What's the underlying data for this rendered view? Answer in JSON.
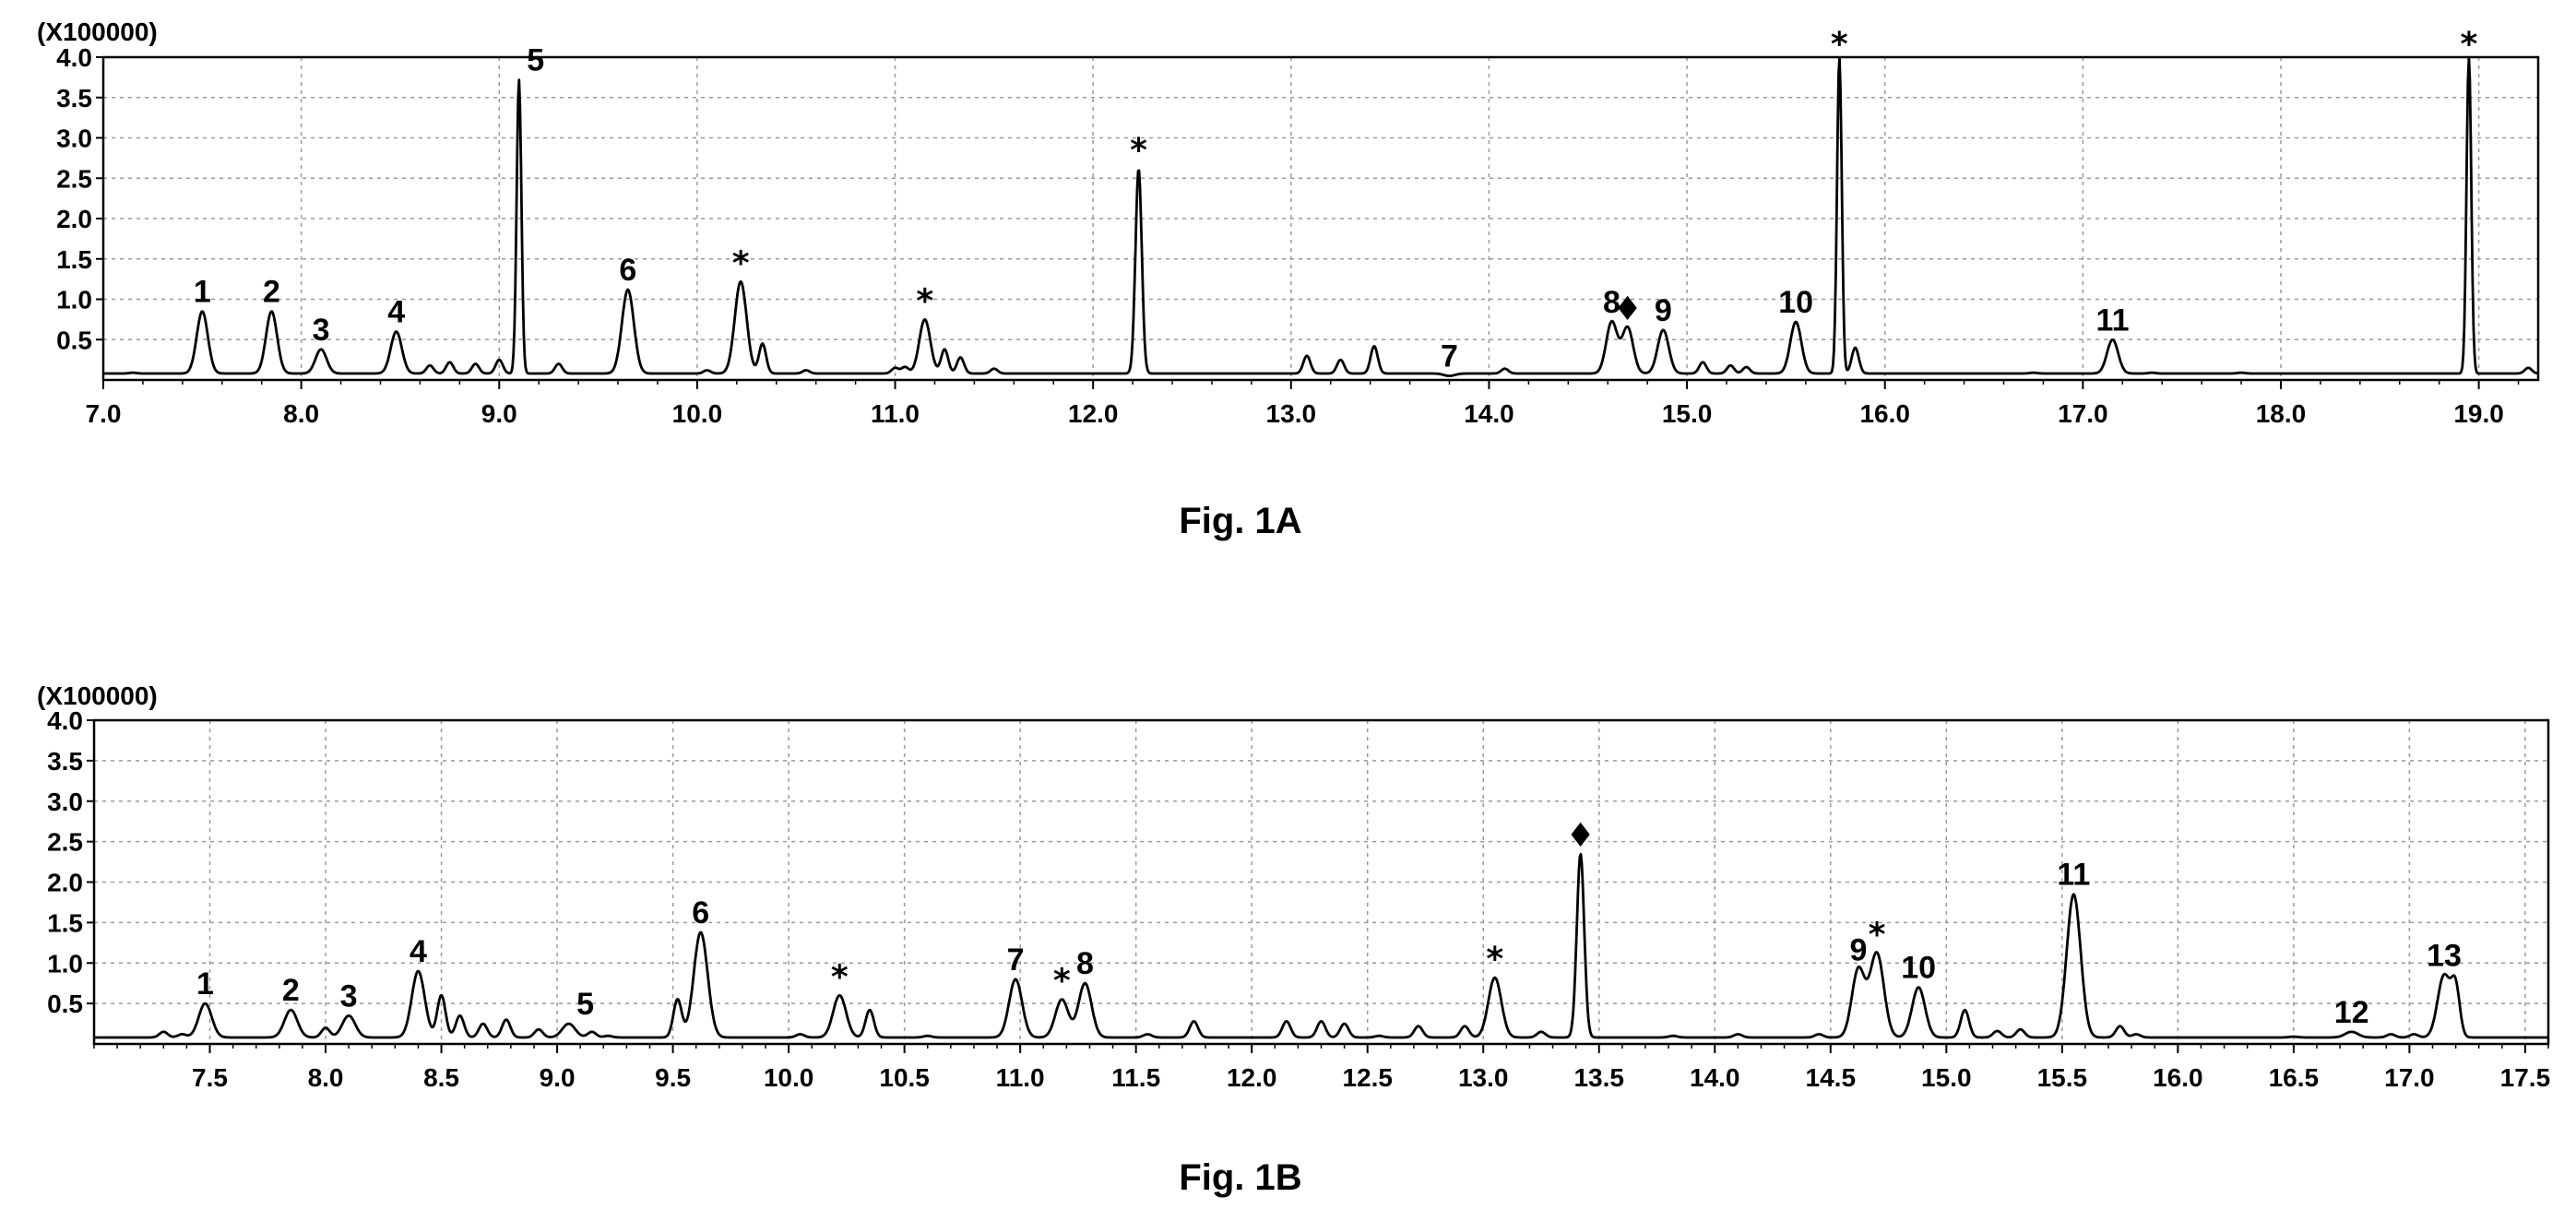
{
  "chart_data": [
    {
      "type": "line",
      "caption": "Fig. 1A",
      "scale_label": "(X100000)",
      "xlim": [
        7.0,
        19.3
      ],
      "ylim": [
        0,
        4.0
      ],
      "x_ticks": [
        "7.0",
        "8.0",
        "9.0",
        "10.0",
        "11.0",
        "12.0",
        "13.0",
        "14.0",
        "15.0",
        "16.0",
        "17.0",
        "18.0",
        "19.0"
      ],
      "y_ticks": [
        "0.5",
        "1.0",
        "1.5",
        "2.0",
        "2.5",
        "3.0",
        "3.5",
        "4.0"
      ],
      "baseline": 0.08,
      "peaks": [
        {
          "x": 7.5,
          "y": 0.85,
          "label": "1"
        },
        {
          "x": 7.85,
          "y": 0.85,
          "label": "2"
        },
        {
          "x": 8.1,
          "y": 0.38,
          "label": "3"
        },
        {
          "x": 8.48,
          "y": 0.6,
          "label": "4"
        },
        {
          "x": 9.1,
          "y": 3.72,
          "label": "5"
        },
        {
          "x": 9.65,
          "y": 1.12,
          "label": "6"
        },
        {
          "x": 10.22,
          "y": 1.22,
          "label": "*"
        },
        {
          "x": 11.15,
          "y": 0.75,
          "label": "*"
        },
        {
          "x": 12.23,
          "y": 2.62,
          "label": "*"
        },
        {
          "x": 13.8,
          "y": 0.05,
          "label": "7"
        },
        {
          "x": 14.62,
          "y": 0.72,
          "label": "8"
        },
        {
          "x": 14.7,
          "y": 0.65,
          "label": "♦"
        },
        {
          "x": 14.88,
          "y": 0.62,
          "label": "9"
        },
        {
          "x": 15.55,
          "y": 0.72,
          "label": "10"
        },
        {
          "x": 15.77,
          "y": 4.0,
          "label": "*"
        },
        {
          "x": 17.15,
          "y": 0.5,
          "label": "11"
        },
        {
          "x": 18.95,
          "y": 4.0,
          "label": "*"
        }
      ],
      "minor_peaks": [
        [
          7.15,
          0.09
        ],
        [
          8.65,
          0.18
        ],
        [
          8.75,
          0.22
        ],
        [
          8.88,
          0.2
        ],
        [
          9.0,
          0.25
        ],
        [
          9.3,
          0.2
        ],
        [
          10.05,
          0.12
        ],
        [
          10.33,
          0.45
        ],
        [
          10.55,
          0.12
        ],
        [
          11.0,
          0.15
        ],
        [
          11.05,
          0.16
        ],
        [
          11.25,
          0.38
        ],
        [
          11.33,
          0.28
        ],
        [
          11.5,
          0.14
        ],
        [
          13.08,
          0.3
        ],
        [
          13.25,
          0.25
        ],
        [
          13.42,
          0.42
        ],
        [
          14.08,
          0.14
        ],
        [
          15.08,
          0.22
        ],
        [
          15.22,
          0.18
        ],
        [
          15.3,
          0.16
        ],
        [
          15.85,
          0.4
        ],
        [
          16.75,
          0.09
        ],
        [
          17.35,
          0.09
        ],
        [
          17.8,
          0.09
        ],
        [
          19.25,
          0.15
        ]
      ]
    },
    {
      "type": "line",
      "caption": "Fig. 1B",
      "scale_label": "(X100000)",
      "xlim": [
        7.0,
        17.6
      ],
      "ylim": [
        0,
        4.0
      ],
      "x_ticks": [
        "7.5",
        "8.0",
        "8.5",
        "9.0",
        "9.5",
        "10.0",
        "10.5",
        "11.0",
        "11.5",
        "12.0",
        "12.5",
        "13.0",
        "13.5",
        "14.0",
        "14.5",
        "15.0",
        "15.5",
        "16.0",
        "16.5",
        "17.0",
        "17.5"
      ],
      "y_ticks": [
        "0.5",
        "1.0",
        "1.5",
        "2.0",
        "2.5",
        "3.0",
        "3.5",
        "4.0"
      ],
      "baseline": 0.08,
      "peaks": [
        {
          "x": 7.48,
          "y": 0.5,
          "label": "1"
        },
        {
          "x": 7.85,
          "y": 0.42,
          "label": "2"
        },
        {
          "x": 8.1,
          "y": 0.35,
          "label": "3"
        },
        {
          "x": 8.4,
          "y": 0.9,
          "label": "4"
        },
        {
          "x": 9.05,
          "y": 0.25,
          "label": "5"
        },
        {
          "x": 9.62,
          "y": 1.38,
          "label": "6"
        },
        {
          "x": 10.22,
          "y": 0.6,
          "label": "*"
        },
        {
          "x": 10.98,
          "y": 0.8,
          "label": "7"
        },
        {
          "x": 11.18,
          "y": 0.55,
          "label": "*"
        },
        {
          "x": 11.28,
          "y": 0.75,
          "label": "8"
        },
        {
          "x": 13.05,
          "y": 0.82,
          "label": "*"
        },
        {
          "x": 13.42,
          "y": 2.35,
          "label": "♦"
        },
        {
          "x": 14.62,
          "y": 0.92,
          "label": "9"
        },
        {
          "x": 14.7,
          "y": 1.12,
          "label": "*"
        },
        {
          "x": 14.88,
          "y": 0.7,
          "label": "10"
        },
        {
          "x": 15.55,
          "y": 1.85,
          "label": "11"
        },
        {
          "x": 16.75,
          "y": 0.15,
          "label": "12"
        },
        {
          "x": 17.15,
          "y": 0.85,
          "label": "13"
        }
      ],
      "minor_peaks": [
        [
          7.3,
          0.15
        ],
        [
          7.38,
          0.12
        ],
        [
          8.0,
          0.2
        ],
        [
          8.5,
          0.6
        ],
        [
          8.58,
          0.35
        ],
        [
          8.68,
          0.25
        ],
        [
          8.78,
          0.3
        ],
        [
          8.92,
          0.18
        ],
        [
          9.15,
          0.15
        ],
        [
          9.22,
          0.1
        ],
        [
          9.52,
          0.55
        ],
        [
          10.05,
          0.12
        ],
        [
          10.35,
          0.42
        ],
        [
          10.6,
          0.1
        ],
        [
          11.55,
          0.12
        ],
        [
          11.75,
          0.28
        ],
        [
          12.15,
          0.28
        ],
        [
          12.3,
          0.28
        ],
        [
          12.4,
          0.25
        ],
        [
          12.55,
          0.1
        ],
        [
          12.72,
          0.22
        ],
        [
          12.92,
          0.22
        ],
        [
          13.25,
          0.15
        ],
        [
          13.82,
          0.1
        ],
        [
          14.1,
          0.12
        ],
        [
          14.45,
          0.12
        ],
        [
          15.08,
          0.42
        ],
        [
          15.22,
          0.16
        ],
        [
          15.32,
          0.18
        ],
        [
          15.75,
          0.22
        ],
        [
          15.82,
          0.12
        ],
        [
          16.5,
          0.09
        ],
        [
          16.92,
          0.12
        ],
        [
          17.02,
          0.12
        ],
        [
          17.2,
          0.65
        ]
      ]
    }
  ]
}
